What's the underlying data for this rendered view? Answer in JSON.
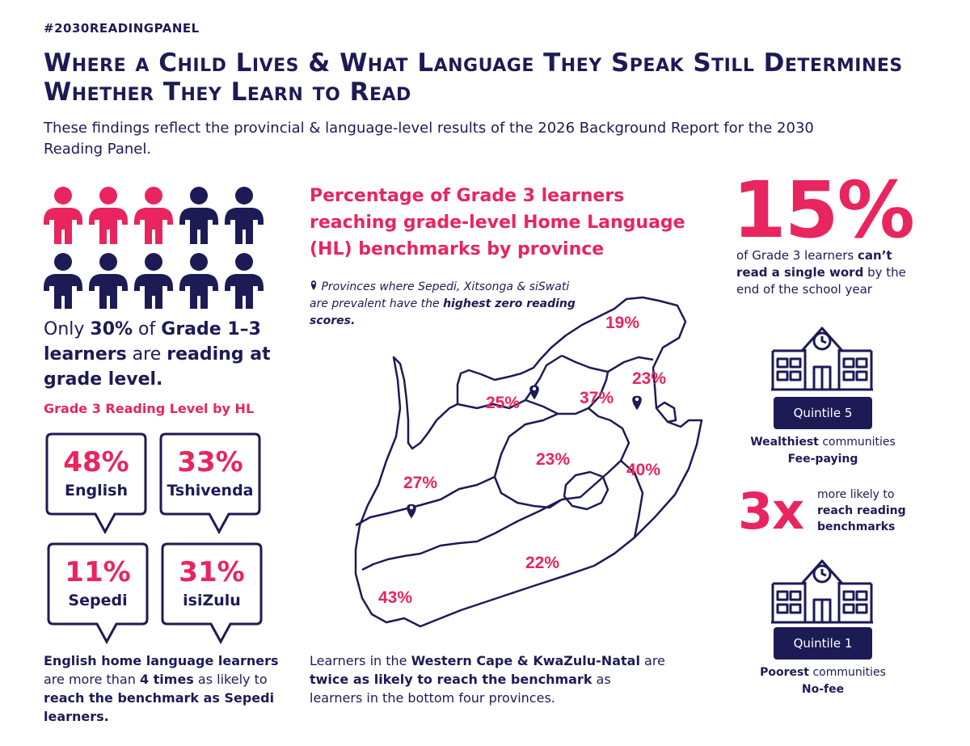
{
  "hashtag": "#2030READINGPANEL",
  "title": "Where a Child Lives & What Language They Speak Still Determines Whether They Learn to Read",
  "subtitle": "These findings reflect the provincial & language-level results of the 2026 Background Report for the 2030 Reading Panel.",
  "people": {
    "highlighted": 3,
    "total": 10
  },
  "stat30": {
    "p1": "Only ",
    "pct": "30%",
    "p2": " of ",
    "grade": "Grade 1–3 learners",
    "p3": " are ",
    "tail": "reading at grade level."
  },
  "hl_heading": "Grade 3 Reading Level by HL",
  "languages": [
    {
      "pct": "48%",
      "lang": "English"
    },
    {
      "pct": "33%",
      "lang": "Tshivenda"
    },
    {
      "pct": "11%",
      "lang": "Sepedi"
    },
    {
      "pct": "31%",
      "lang": "isiZulu"
    }
  ],
  "english_note": {
    "b1": "English home language learners",
    "p1": " are more than ",
    "b2": "4 times",
    "p2": " as likely to ",
    "b3": "reach the benchmark as Sepedi learners."
  },
  "map_heading": "Percentage of Grade 3 learners reaching grade-level Home Language (HL) benchmarks by province",
  "map_note": {
    "p1": "Provinces where Sepedi, Xitsonga & siSwati are prevalent have the ",
    "b1": "highest zero reading scores."
  },
  "province_values": [
    "19%",
    "23%",
    "25%",
    "37%",
    "23%",
    "40%",
    "27%",
    "22%",
    "43%"
  ],
  "map_foot": {
    "p1": "Learners in the ",
    "b1": "Western Cape & KwaZulu-Natal",
    "p2": " are ",
    "b2": "twice as likely to reach the benchmark",
    "p3": " as learners in the bottom four provinces."
  },
  "big_stat": "15%",
  "big_stat_note": {
    "p1": "of Grade 3 learners ",
    "b1": "can’t read a single word",
    "p2": " by the end of the school year"
  },
  "quintile5": {
    "label": "Quintile 5",
    "b1": "Wealthiest",
    "p1": " communities",
    "b2": "Fee-paying"
  },
  "multiplier": {
    "value": "3x",
    "p1": "more likely to ",
    "b1": "reach reading benchmarks"
  },
  "quintile1": {
    "label": "Quintile 1",
    "b1": "Poorest",
    "p1": " communities",
    "b2": "No-fee"
  },
  "colors": {
    "navy": "#1d1b55",
    "pink": "#e8255e"
  },
  "icons": [
    "person-icon",
    "speech-bubble-icon",
    "map-pin-icon",
    "school-icon"
  ]
}
